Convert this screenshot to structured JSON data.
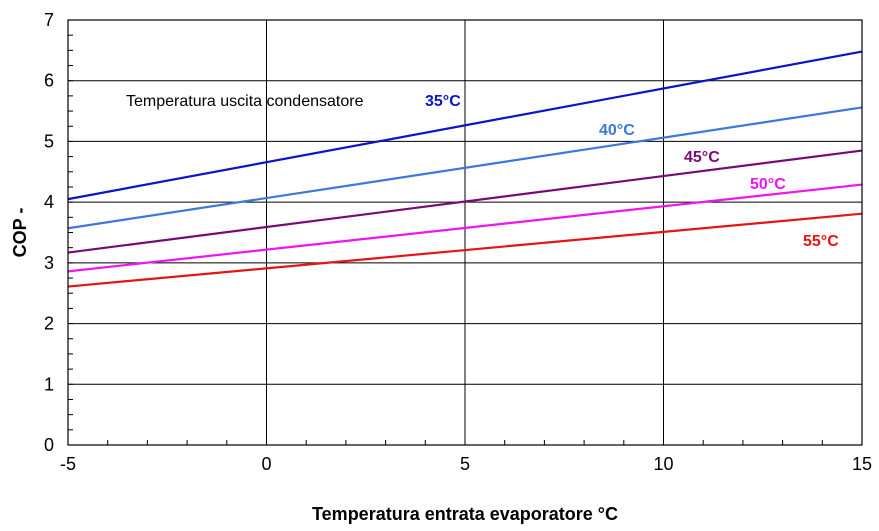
{
  "chart_data": {
    "type": "line",
    "xlabel": "Temperatura entrata evaporatore °C",
    "ylabel": "COP -",
    "xlim": [
      -5,
      15
    ],
    "ylim": [
      0,
      7
    ],
    "xticks": [
      -5,
      0,
      5,
      10,
      15
    ],
    "yticks": [
      0,
      1,
      2,
      3,
      4,
      5,
      6,
      7
    ],
    "grid": true,
    "annotation": "Temperatura uscita condensatore",
    "series": [
      {
        "name": "35°C",
        "color": "#0a14c8",
        "x": [
          -5,
          15
        ],
        "y": [
          4.05,
          6.48
        ]
      },
      {
        "name": "40°C",
        "color": "#3c78dc",
        "x": [
          -5,
          15
        ],
        "y": [
          3.57,
          5.56
        ]
      },
      {
        "name": "45°C",
        "color": "#780a78",
        "x": [
          -5,
          15
        ],
        "y": [
          3.17,
          4.85
        ]
      },
      {
        "name": "50°C",
        "color": "#f014f0",
        "x": [
          -5,
          15
        ],
        "y": [
          2.86,
          4.29
        ]
      },
      {
        "name": "55°C",
        "color": "#e61414",
        "x": [
          -5,
          15
        ],
        "y": [
          2.61,
          3.81
        ]
      }
    ]
  }
}
